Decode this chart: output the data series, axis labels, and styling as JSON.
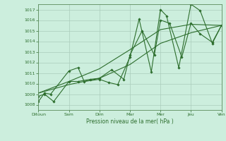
{
  "title": "",
  "xlabel": "Pression niveau de la mer( hPa )",
  "ylabel": "",
  "bg_color": "#cceedd",
  "grid_color": "#aaccbb",
  "line_color": "#2d6e2d",
  "xlim": [
    0,
    6
  ],
  "ylim": [
    1007.5,
    1017.5
  ],
  "yticks": [
    1008,
    1009,
    1010,
    1011,
    1012,
    1013,
    1014,
    1015,
    1016,
    1017
  ],
  "xtick_labels": [
    "Ditoun",
    "Sam",
    "Dim",
    "Mar",
    "Mer",
    "Jeu",
    "Ven"
  ],
  "xtick_pos": [
    0,
    1,
    2,
    3,
    4,
    5,
    6
  ],
  "series": [
    {
      "x": [
        0.0,
        0.2,
        0.4,
        1.0,
        1.3,
        1.5,
        2.0,
        2.3,
        2.6,
        3.0,
        3.3,
        3.7,
        4.0,
        4.2,
        4.6,
        5.0,
        5.3,
        5.7,
        6.0
      ],
      "y": [
        1008.3,
        1009.1,
        1009.0,
        1011.2,
        1011.5,
        1010.2,
        1010.4,
        1010.1,
        1009.9,
        1012.5,
        1016.1,
        1011.1,
        1017.0,
        1016.4,
        1011.5,
        1017.5,
        1016.9,
        1013.8,
        1015.5
      ]
    },
    {
      "x": [
        0.0,
        0.2,
        0.5,
        1.0,
        1.3,
        1.7,
        2.0,
        2.4,
        2.8,
        3.0,
        3.4,
        3.8,
        4.0,
        4.3,
        4.7,
        5.0,
        5.3,
        5.7,
        6.0
      ],
      "y": [
        1008.8,
        1009.0,
        1008.3,
        1010.2,
        1010.2,
        1010.4,
        1010.5,
        1011.3,
        1010.4,
        1012.7,
        1015.0,
        1012.7,
        1016.0,
        1015.7,
        1012.5,
        1015.7,
        1014.7,
        1013.9,
        1015.5
      ]
    },
    {
      "x": [
        0.0,
        1.0,
        2.0,
        3.0,
        4.0,
        5.0,
        6.0
      ],
      "y": [
        1009.1,
        1010.2,
        1011.4,
        1013.2,
        1015.1,
        1015.6,
        1015.5
      ]
    },
    {
      "x": [
        0.0,
        1.0,
        2.0,
        3.0,
        4.0,
        5.0,
        6.0
      ],
      "y": [
        1009.1,
        1009.9,
        1010.5,
        1011.8,
        1013.8,
        1014.8,
        1015.5
      ]
    }
  ]
}
